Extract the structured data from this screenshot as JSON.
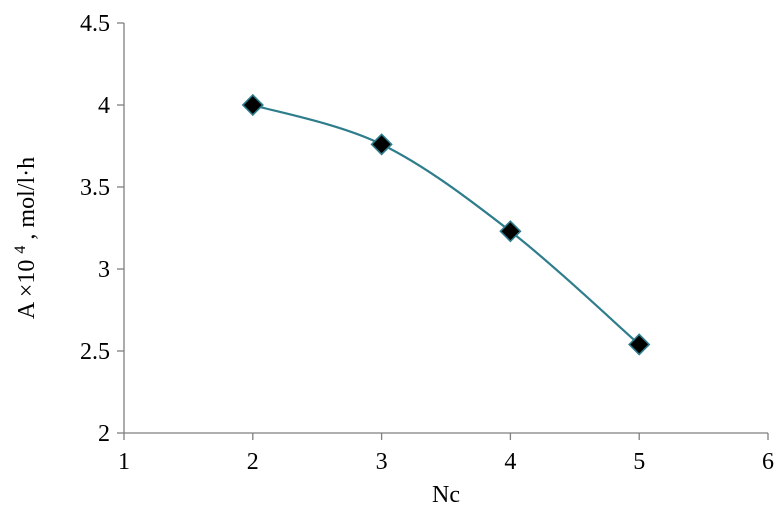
{
  "chart_data": {
    "type": "scatter",
    "title": "",
    "xlabel": "Nc",
    "ylabel": {
      "base": "A ×10",
      "superscript": "4",
      "unit": ", mol/l·h"
    },
    "xlim": [
      1,
      6
    ],
    "ylim": [
      2,
      4.5
    ],
    "x_ticks": [
      1,
      2,
      3,
      4,
      5,
      6
    ],
    "y_ticks": [
      2,
      2.5,
      3,
      3.5,
      4,
      4.5
    ],
    "grid": false,
    "legend": "none",
    "series": [
      {
        "x": [
          2,
          3,
          4,
          5
        ],
        "y": [
          4.0,
          3.76,
          3.23,
          2.54
        ],
        "line": "smooth",
        "marker": "diamond"
      }
    ],
    "colors": {
      "line": "#2e7d8c",
      "marker_fill": "#000000",
      "marker_edge": "#2e7d8c",
      "axis": "#7f7f7f"
    }
  }
}
